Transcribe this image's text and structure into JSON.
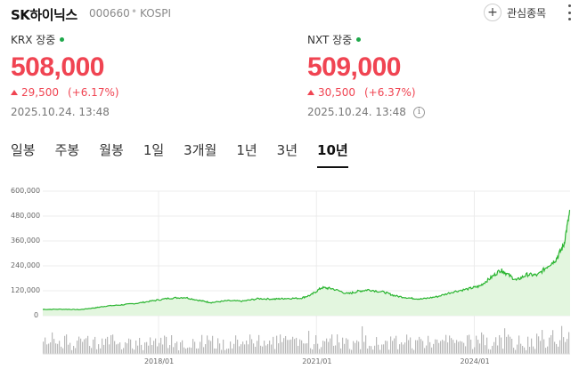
{
  "header": {
    "stock_name": "SK하이닉스",
    "stock_code": "000660",
    "separator": "•",
    "market": "KOSPI",
    "watchlist_label": "관심종목",
    "watchlist_icon": "plus-icon",
    "more_icon": "more-vertical-icon"
  },
  "krx": {
    "label": "KRX 장중",
    "price": "508,000",
    "change": "29,500",
    "change_pct": "(+6.17%)",
    "timestamp": "2025.10.24. 13:48"
  },
  "nxt": {
    "label": "NXT 장중",
    "price": "509,000",
    "change": "30,500",
    "change_pct": "(+6.37%)",
    "timestamp": "2025.10.24. 13:48",
    "info_icon": "info-icon"
  },
  "colors": {
    "up": "#f04452",
    "line": "#2bb531",
    "area": "#e3f6df",
    "volume": "#b9b9b9",
    "status": "#1ea84a"
  },
  "tabs": [
    {
      "label": "일봉"
    },
    {
      "label": "주봉"
    },
    {
      "label": "월봉"
    },
    {
      "label": "1일"
    },
    {
      "label": "3개월"
    },
    {
      "label": "1년"
    },
    {
      "label": "3년"
    },
    {
      "label": "10년"
    }
  ],
  "active_tab": 7,
  "chart_data": {
    "type": "area",
    "ylim": [
      0,
      600000
    ],
    "yticks": [
      "600,000",
      "480,000",
      "360,000",
      "240,000",
      "120,000",
      "0"
    ],
    "ytick_values": [
      600000,
      480000,
      360000,
      240000,
      120000,
      0
    ],
    "xticks": [
      "2018/01",
      "2021/01",
      "2024/01"
    ],
    "xtick_values": [
      2018.0,
      2021.0,
      2024.0
    ],
    "xlim": [
      2015.8,
      2025.82
    ],
    "grid": true,
    "series": [
      {
        "x": [
          2015.8,
          2016.2,
          2016.5,
          2016.8,
          2017.0,
          2017.3,
          2017.6,
          2017.9,
          2018.2,
          2018.5,
          2018.8,
          2019.0,
          2019.3,
          2019.6,
          2019.9,
          2020.2,
          2020.4,
          2020.7,
          2020.9,
          2021.1,
          2021.3,
          2021.6,
          2021.8,
          2022.0,
          2022.3,
          2022.5,
          2022.8,
          2023.0,
          2023.3,
          2023.6,
          2023.9,
          2024.1,
          2024.3,
          2024.5,
          2024.6,
          2024.8,
          2025.0,
          2025.2,
          2025.4,
          2025.55,
          2025.7,
          2025.82
        ],
        "y": [
          30000,
          31000,
          29000,
          38000,
          46000,
          52000,
          60000,
          72000,
          84000,
          88000,
          72000,
          63000,
          72000,
          70000,
          82000,
          80000,
          83000,
          84000,
          100000,
          135000,
          130000,
          105000,
          118000,
          125000,
          112000,
          95000,
          84000,
          80000,
          92000,
          115000,
          130000,
          142000,
          180000,
          220000,
          205000,
          170000,
          198000,
          195000,
          240000,
          270000,
          340000,
          508000
        ]
      }
    ],
    "volume": {
      "note": "relative daily volume bars shown below the price chart"
    }
  }
}
